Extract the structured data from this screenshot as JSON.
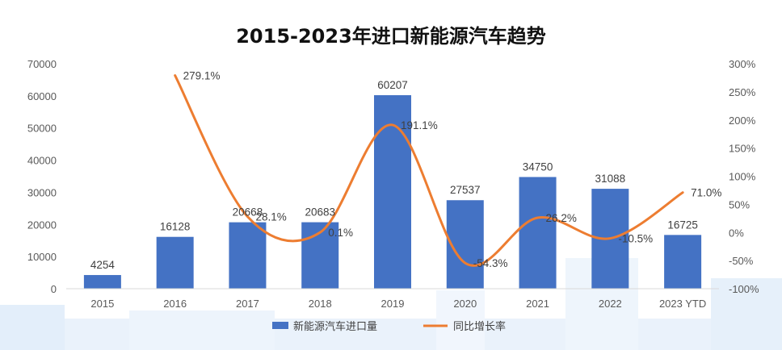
{
  "chart_data": {
    "type": "bar",
    "title": "2015-2023年进口新能源汽车趋势",
    "categories": [
      "2015",
      "2016",
      "2017",
      "2018",
      "2019",
      "2020",
      "2021",
      "2022",
      "2023 YTD"
    ],
    "series": [
      {
        "name": "新能源汽车进口量",
        "type": "bar",
        "axis": "left",
        "values": [
          4254,
          16128,
          20668,
          20683,
          60207,
          27537,
          34750,
          31088,
          16725
        ],
        "labels": [
          "4254",
          "16128",
          "20668",
          "20683",
          "60207",
          "27537",
          "34750",
          "31088",
          "16725"
        ],
        "color": "#4472C4"
      },
      {
        "name": "同比增长率",
        "type": "line",
        "axis": "right",
        "smooth": true,
        "values": [
          null,
          279.1,
          28.1,
          0.1,
          191.1,
          -54.3,
          26.2,
          -10.5,
          71.0
        ],
        "labels": [
          null,
          "279.1%",
          "28.1%",
          "0.1%",
          "191.1%",
          "-54.3%",
          "26.2%",
          "-10.5%",
          "71.0%"
        ],
        "color": "#ED7D31"
      }
    ],
    "y_left": {
      "min": 0,
      "max": 70000,
      "ticks": [
        "0",
        "10000",
        "20000",
        "30000",
        "40000",
        "50000",
        "60000",
        "70000"
      ]
    },
    "y_right": {
      "min": -100,
      "max": 300,
      "ticks": [
        "-100%",
        "-50%",
        "0%",
        "50%",
        "100%",
        "150%",
        "200%",
        "250%",
        "300%"
      ]
    },
    "grid": false,
    "legend_position": "bottom"
  }
}
